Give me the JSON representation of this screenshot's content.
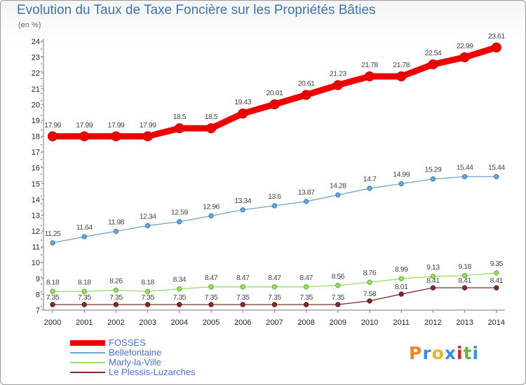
{
  "header": {
    "title": "Evolution du Taux de Taxe Foncière sur les Propriétés Bâties",
    "unit": "(en %)"
  },
  "logo": {
    "text": "Proxiti"
  },
  "chart_data": {
    "type": "line",
    "title": "Evolution du Taux de Taxe Foncière sur les Propriétés Bâties",
    "ylabel": "(en %)",
    "xlabel": "",
    "ylim": [
      7,
      24
    ],
    "y_ticks": [
      7,
      8,
      9,
      10,
      11,
      12,
      13,
      14,
      15,
      16,
      17,
      18,
      19,
      20,
      21,
      22,
      23,
      24
    ],
    "grid": false,
    "legend_position": "bottom-left",
    "categories": [
      "2000",
      "2001",
      "2002",
      "2003",
      "2004",
      "2005",
      "2006",
      "2007",
      "2008",
      "2009",
      "2010",
      "2011",
      "2012",
      "2013",
      "2014"
    ],
    "series": [
      {
        "name": "FOSSES",
        "color": "#ee0000",
        "values": [
          17.99,
          17.99,
          17.99,
          17.99,
          18.5,
          18.5,
          19.43,
          20.01,
          20.61,
          21.23,
          21.78,
          21.78,
          22.54,
          22.99,
          23.61
        ],
        "labels": [
          "17.99",
          "17.99",
          "17.99",
          "17.99",
          "18.5",
          "18.5",
          "19.43",
          "20.01",
          "20.61",
          "21.23",
          "21.78",
          "21.78",
          "22.54",
          "22.99",
          "23.61"
        ]
      },
      {
        "name": "Bellefontaine",
        "color": "#6fa3d1",
        "values": [
          11.25,
          11.64,
          11.98,
          12.34,
          12.59,
          12.96,
          13.34,
          13.6,
          13.87,
          14.28,
          14.7,
          14.99,
          15.29,
          15.44,
          15.44
        ],
        "labels": [
          "11.25",
          "11.64",
          "11.98",
          "12.34",
          "12.59",
          "12.96",
          "13.34",
          "13.6",
          "13.87",
          "14.28",
          "14.7",
          "14.99",
          "15.29",
          "15.44",
          "15.44"
        ]
      },
      {
        "name": "Marly-la-Ville",
        "color": "#99dd66",
        "values": [
          8.18,
          8.18,
          8.26,
          8.18,
          8.34,
          8.47,
          8.47,
          8.47,
          8.47,
          8.56,
          8.76,
          8.99,
          9.13,
          9.18,
          9.35
        ],
        "labels": [
          "8.18",
          "8.18",
          "8.26",
          "8.18",
          "8.34",
          "8.47",
          "8.47",
          "8.47",
          "8.47",
          "8.56",
          "8.76",
          "8.99",
          "9.13",
          "9.18",
          "9.35"
        ]
      },
      {
        "name": "Le Plessis-Luzarches",
        "color": "#7a2e2e",
        "values": [
          7.35,
          7.35,
          7.35,
          7.35,
          7.35,
          7.35,
          7.35,
          7.35,
          7.35,
          7.35,
          7.58,
          8.01,
          8.41,
          8.41,
          8.41
        ],
        "labels": [
          "7.35",
          "7.35",
          "7.35",
          "7.35",
          "7.35",
          "7.35",
          "7.35",
          "7.35",
          "7.35",
          "7.35",
          "7.58",
          "8.01",
          "8.41",
          "8.41",
          "8.41"
        ]
      }
    ]
  }
}
